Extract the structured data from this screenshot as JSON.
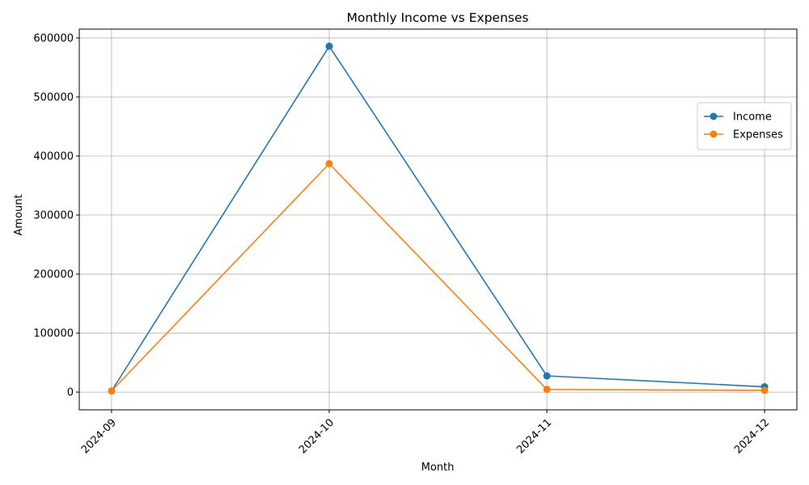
{
  "chart_data": {
    "type": "line",
    "title": "Monthly Income vs Expenses",
    "xlabel": "Month",
    "ylabel": "Amount",
    "categories": [
      "2024-09",
      "2024-10",
      "2024-11",
      "2024-12"
    ],
    "ylim": [
      -30000,
      615000
    ],
    "yticks": [
      0,
      100000,
      200000,
      300000,
      400000,
      500000,
      600000
    ],
    "ytick_labels": [
      "0",
      "100000",
      "200000",
      "300000",
      "400000",
      "500000",
      "600000"
    ],
    "grid": true,
    "legend_position": "top-right",
    "series": [
      {
        "name": "Income",
        "color": "#1f77b4",
        "marker": "circle",
        "values": [
          2000,
          586000,
          27500,
          9000
        ]
      },
      {
        "name": "Expenses",
        "color": "#ff7f0e",
        "marker": "circle",
        "values": [
          2000,
          387000,
          4500,
          3000
        ]
      }
    ]
  }
}
